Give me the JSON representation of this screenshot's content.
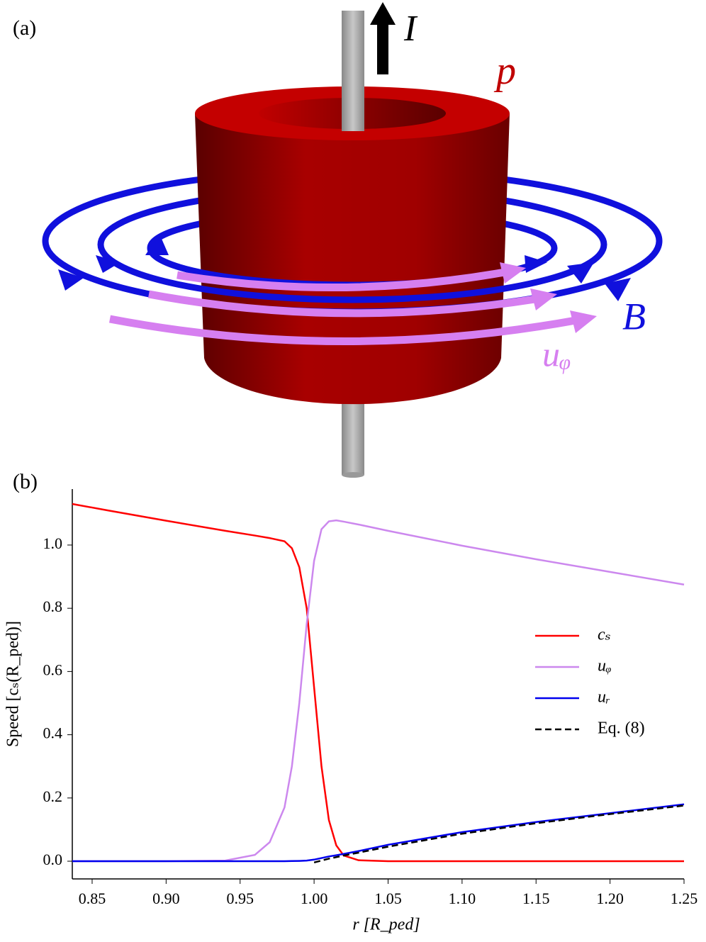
{
  "panel_a": {
    "label": "(a)",
    "current": "I",
    "pressure": "p",
    "field": "B",
    "flow": "uᵩ"
  },
  "chart_data": {
    "type": "line",
    "panel_label": "(b)",
    "xlabel": "r [R_ped]",
    "ylabel": "Speed [cₛ(R_ped)]",
    "x": [
      0.8366,
      0.86,
      0.9,
      0.94,
      0.96,
      0.97,
      0.98,
      0.985,
      0.99,
      0.995,
      1.0,
      1.005,
      1.01,
      1.015,
      1.02,
      1.03,
      1.05,
      1.1,
      1.15,
      1.2,
      1.25
    ],
    "series": [
      {
        "name": "cₛ",
        "color": "#ff0000",
        "dash": false,
        "values": [
          1.13,
          1.11,
          1.077,
          1.045,
          1.03,
          1.022,
          1.012,
          0.99,
          0.93,
          0.8,
          0.55,
          0.3,
          0.13,
          0.05,
          0.018,
          0.003,
          0,
          0,
          0,
          0,
          0
        ]
      },
      {
        "name": "uᵩ",
        "color": "#cc88ee",
        "dash": false,
        "values": [
          0,
          0,
          0,
          0.002,
          0.02,
          0.06,
          0.17,
          0.3,
          0.5,
          0.75,
          0.95,
          1.05,
          1.075,
          1.078,
          1.074,
          1.065,
          1.045,
          0.998,
          0.955,
          0.915,
          0.875
        ]
      },
      {
        "name": "uᵣ",
        "color": "#0000ee",
        "dash": false,
        "values": [
          0,
          0,
          0,
          0,
          0,
          0,
          0,
          0.0005,
          0.001,
          0.002,
          0.005,
          0.01,
          0.015,
          0.019,
          0.023,
          0.032,
          0.052,
          0.092,
          0.124,
          0.152,
          0.18
        ]
      },
      {
        "name": "Eq. (8)",
        "color": "#000000",
        "dash": true,
        "values": [
          null,
          null,
          null,
          null,
          null,
          null,
          null,
          null,
          null,
          null,
          -0.004,
          0.002,
          0.008,
          0.013,
          0.018,
          0.027,
          0.046,
          0.087,
          0.12,
          0.149,
          0.176
        ]
      }
    ],
    "xlim": [
      0.8366,
      1.25
    ],
    "ylim": [
      -0.056,
      1.177
    ],
    "xticks": [
      0.85,
      {
        "value": 0.9,
        "label": "0.90"
      },
      0.95,
      {
        "value": 1.0,
        "label": "1.00"
      },
      1.05,
      {
        "value": 1.1,
        "label": "1.10"
      },
      1.15,
      {
        "value": 1.2,
        "label": "1.20"
      },
      1.25
    ],
    "yticks": [
      {
        "value": 0,
        "label": "0.0"
      },
      {
        "value": 0.2,
        "label": "0.2"
      },
      {
        "value": 0.4,
        "label": "0.4"
      },
      {
        "value": 0.6,
        "label": "0.6"
      },
      {
        "value": 0.8,
        "label": "0.8"
      },
      {
        "value": 1.0,
        "label": "1.0"
      }
    ],
    "grid": false,
    "legend": "right"
  }
}
